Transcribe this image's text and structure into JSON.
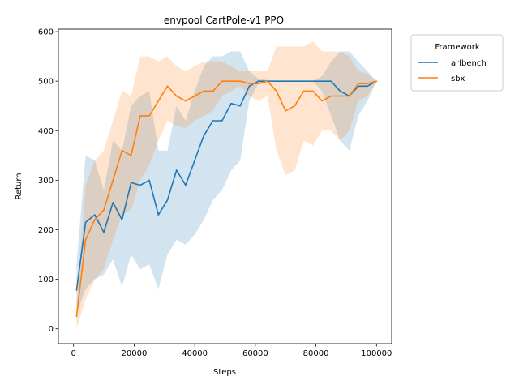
{
  "chart_data": {
    "type": "line",
    "title": "envpool CartPole-v1 PPO",
    "xlabel": "Steps",
    "ylabel": "Return",
    "xlim": [
      -5000,
      105000
    ],
    "ylim": [
      -30,
      605
    ],
    "xticks": [
      0,
      20000,
      40000,
      60000,
      80000,
      100000
    ],
    "xtick_labels": [
      "0",
      "20000",
      "40000",
      "60000",
      "80000",
      "100000"
    ],
    "yticks": [
      0,
      100,
      200,
      300,
      400,
      500,
      600
    ],
    "ytick_labels": [
      "0",
      "100",
      "200",
      "300",
      "400",
      "500",
      "600"
    ],
    "grid": false,
    "legend": {
      "title": "Framework",
      "placement": "outside-top-right",
      "entries": [
        "arlbench",
        "sbx"
      ]
    },
    "x": [
      1000,
      4000,
      7000,
      10000,
      13000,
      16000,
      19000,
      22000,
      25000,
      28000,
      31000,
      34000,
      37000,
      40000,
      43000,
      46000,
      49000,
      52000,
      55000,
      58000,
      61000,
      64000,
      67000,
      70000,
      73000,
      76000,
      79000,
      82000,
      85000,
      88000,
      91000,
      94000,
      97000,
      100000
    ],
    "series": [
      {
        "name": "arlbench",
        "color": "#1f77b4",
        "values": [
          78,
          215,
          230,
          195,
          255,
          220,
          295,
          290,
          300,
          230,
          260,
          320,
          290,
          340,
          390,
          420,
          420,
          455,
          450,
          490,
          500,
          500,
          500,
          500,
          500,
          500,
          500,
          500,
          500,
          480,
          470,
          490,
          490,
          500
        ],
        "lower": [
          30,
          80,
          100,
          110,
          140,
          85,
          150,
          120,
          130,
          80,
          150,
          180,
          170,
          190,
          220,
          260,
          280,
          320,
          340,
          460,
          495,
          498,
          500,
          500,
          500,
          500,
          500,
          480,
          430,
          380,
          360,
          430,
          460,
          500
        ],
        "upper": [
          130,
          350,
          340,
          280,
          380,
          360,
          450,
          470,
          480,
          360,
          360,
          450,
          420,
          480,
          530,
          550,
          550,
          560,
          560,
          520,
          505,
          502,
          500,
          500,
          500,
          500,
          500,
          510,
          540,
          560,
          560,
          540,
          520,
          500
        ]
      },
      {
        "name": "sbx",
        "color": "#ff7f0e",
        "values": [
          25,
          180,
          220,
          240,
          300,
          360,
          350,
          430,
          430,
          460,
          490,
          470,
          460,
          470,
          480,
          480,
          500,
          500,
          500,
          495,
          495,
          500,
          480,
          440,
          450,
          480,
          480,
          460,
          470,
          470,
          470,
          495,
          495,
          500
        ],
        "lower": [
          0,
          60,
          100,
          120,
          180,
          230,
          240,
          300,
          330,
          380,
          420,
          410,
          405,
          420,
          430,
          440,
          470,
          480,
          490,
          470,
          460,
          470,
          360,
          310,
          320,
          380,
          370,
          400,
          400,
          380,
          400,
          460,
          470,
          500
        ],
        "upper": [
          50,
          290,
          340,
          360,
          420,
          480,
          470,
          550,
          550,
          540,
          550,
          530,
          520,
          530,
          540,
          540,
          540,
          530,
          520,
          520,
          520,
          520,
          570,
          570,
          570,
          570,
          580,
          560,
          560,
          560,
          550,
          520,
          515,
          500
        ]
      }
    ]
  }
}
